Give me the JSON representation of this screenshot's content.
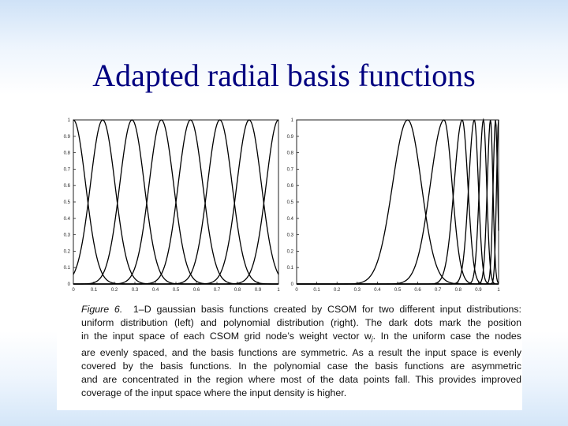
{
  "slide": {
    "title": "Adapted radial basis functions"
  },
  "figure": {
    "caption": {
      "label": "Figure 6.",
      "lines": [
        "1–D gaussian basis functions created by CSOM for two different input distributions:",
        "uniform distribution (left) and polynomial distribution (right). The dark dots mark the position",
        "in the input space of each CSOM grid node’s weight vector w",
        ". In the uniform case the nodes",
        "are evenly spaced, and the basis functions are symmetric. As a result the input space is evenly",
        "covered by the basis functions. In the polynomial case the basis functions are asymmetric",
        "and are concentrated in the region where most of the data points fall. This provides improved",
        "coverage of the input space where the input density is higher."
      ],
      "subscript": "j"
    }
  },
  "chart_data": [
    {
      "type": "line",
      "title": "",
      "xlabel": "",
      "ylabel": "",
      "xlim": [
        0,
        1
      ],
      "ylim": [
        0,
        1
      ],
      "x_ticks": [
        "0",
        "0.1",
        "0.2",
        "0.3",
        "0.4",
        "0.5",
        "0.6",
        "0.7",
        "0.8",
        "0.9",
        "1"
      ],
      "y_ticks": [
        "0",
        "0.1",
        "0.2",
        "0.3",
        "0.4",
        "0.5",
        "0.6",
        "0.7",
        "0.8",
        "0.9",
        "1"
      ],
      "centers": [
        0.0,
        0.143,
        0.286,
        0.429,
        0.571,
        0.714,
        0.857,
        1.0
      ],
      "widths_left": [
        0.06,
        0.06,
        0.06,
        0.06,
        0.06,
        0.06,
        0.06,
        0.06
      ],
      "widths_right": [
        0.06,
        0.06,
        0.06,
        0.06,
        0.06,
        0.06,
        0.06,
        0.06
      ],
      "color": "#000000"
    },
    {
      "type": "line",
      "title": "",
      "xlabel": "",
      "ylabel": "",
      "xlim": [
        0,
        1
      ],
      "ylim": [
        0,
        1
      ],
      "x_ticks": [
        "0",
        "0.1",
        "0.2",
        "0.3",
        "0.4",
        "0.5",
        "0.6",
        "0.7",
        "0.8",
        "0.9",
        "1"
      ],
      "y_ticks": [
        "0",
        "0.1",
        "0.2",
        "0.3",
        "0.4",
        "0.5",
        "0.6",
        "0.7",
        "0.8",
        "0.9",
        "1"
      ],
      "centers": [
        0.55,
        0.73,
        0.82,
        0.88,
        0.925,
        0.96,
        0.985,
        1.0
      ],
      "widths_left": [
        0.075,
        0.068,
        0.04,
        0.028,
        0.02,
        0.016,
        0.012,
        0.01
      ],
      "widths_right": [
        0.068,
        0.04,
        0.028,
        0.02,
        0.016,
        0.012,
        0.01,
        0.01
      ],
      "color": "#000000"
    }
  ]
}
